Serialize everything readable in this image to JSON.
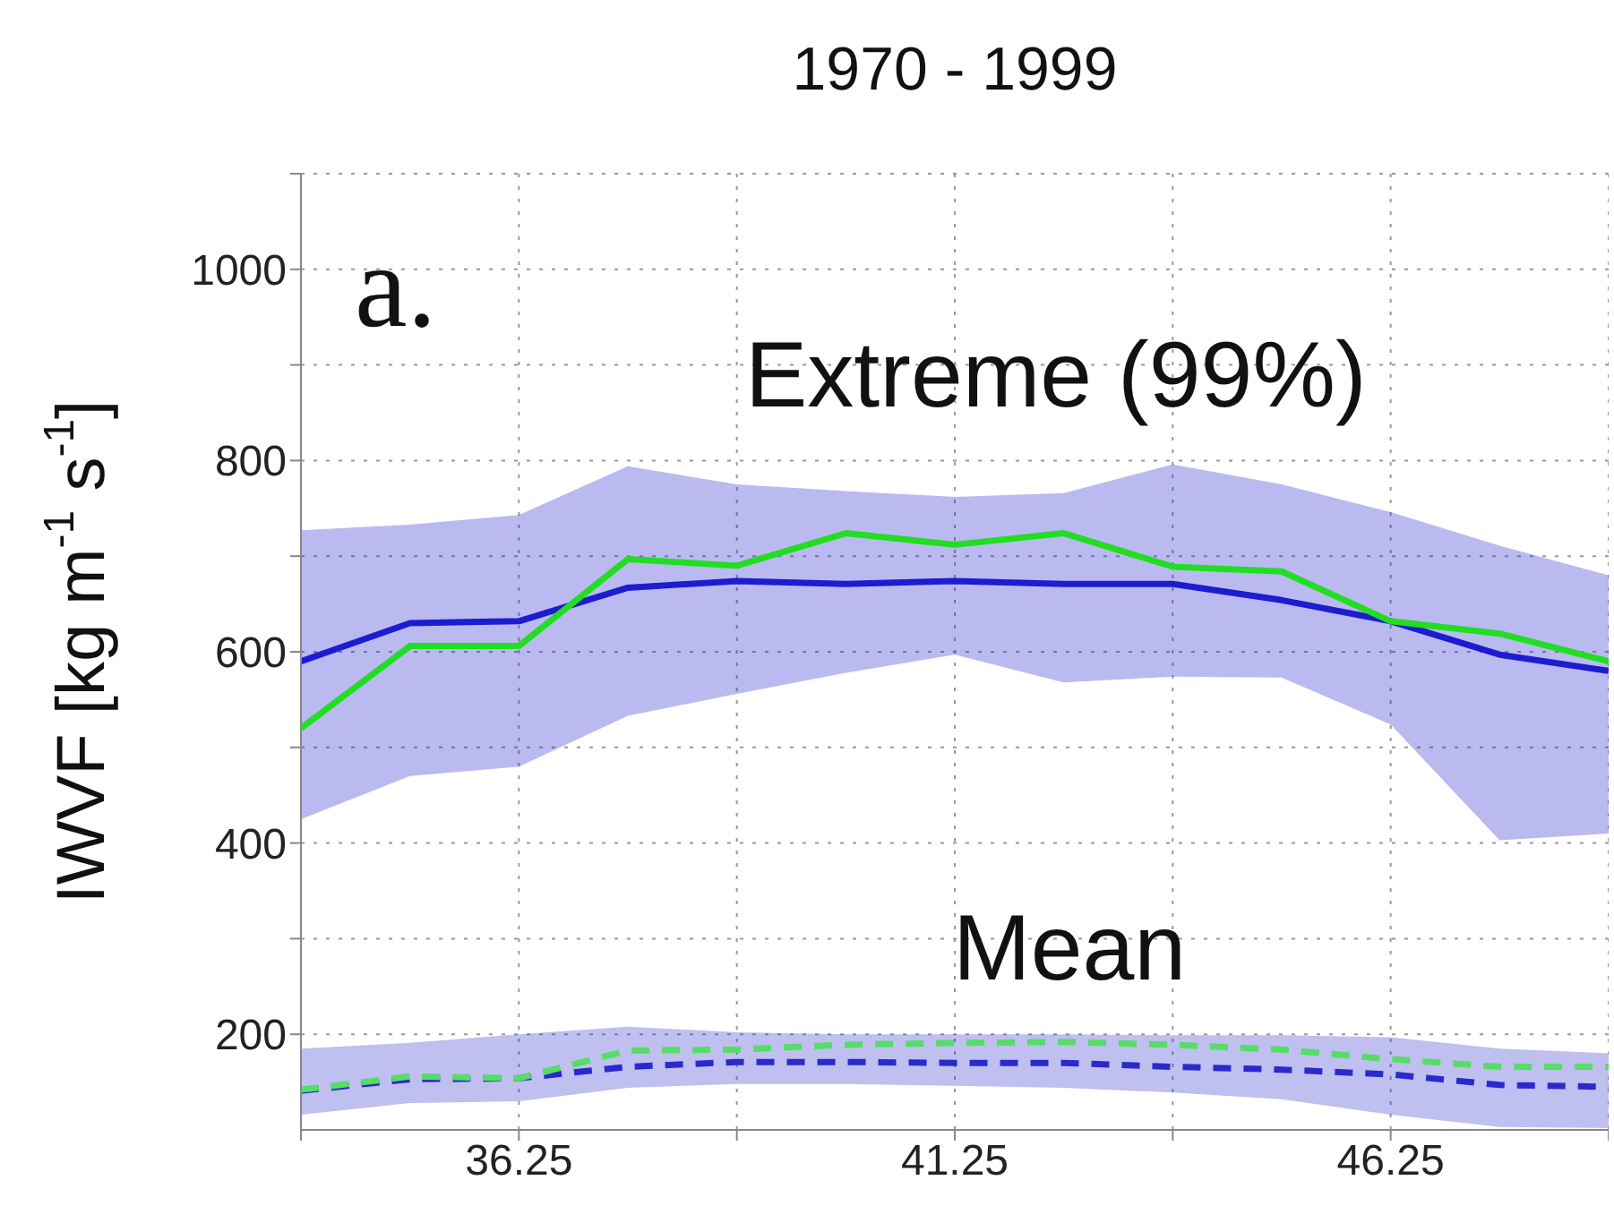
{
  "chart_data": {
    "type": "line",
    "title": "1970 - 1999",
    "ylabel": "IWVF [kg m$^{-1}$ s$^{-1}$]",
    "annotations": [
      "a.",
      "Extreme (99%)",
      "Mean"
    ],
    "x": [
      33.75,
      35,
      36.25,
      37.5,
      38.75,
      40,
      41.25,
      42.5,
      43.75,
      45,
      46.25,
      47.5,
      48.75
    ],
    "series": [
      {
        "color": "#1c1cd0",
        "line_style": "solid",
        "values": [
          590,
          630,
          632,
          667,
          674,
          671,
          674,
          671,
          671,
          654,
          632,
          597,
          580
        ],
        "lower": [
          425,
          470,
          480,
          533,
          556,
          578,
          597,
          568,
          574,
          573,
          524,
          403,
          410
        ],
        "upper": [
          727,
          733,
          743,
          794,
          775,
          768,
          762,
          766,
          796,
          775,
          746,
          711,
          680
        ]
      },
      {
        "color": "#22dd22",
        "line_style": "solid",
        "values": [
          520,
          606,
          606,
          697,
          690,
          724,
          712,
          724,
          689,
          684,
          632,
          619,
          590
        ]
      },
      {
        "color": "#2a2acc",
        "line_style": "dashed",
        "values": [
          141,
          153,
          154,
          166,
          171,
          171,
          170,
          170,
          166,
          163,
          158,
          147,
          145
        ],
        "lower": [
          116,
          128,
          130,
          144,
          148,
          148,
          146,
          144,
          139,
          132,
          116,
          103,
          102
        ],
        "upper": [
          185,
          191,
          200,
          208,
          202,
          200,
          200,
          200,
          199,
          199,
          197,
          185,
          180
        ]
      },
      {
        "color": "#55dd66",
        "line_style": "dashed",
        "values": [
          142,
          156,
          154,
          183,
          184,
          189,
          191,
          192,
          189,
          184,
          174,
          166,
          166
        ]
      }
    ],
    "xlim": [
      33.75,
      48.75
    ],
    "xticks": [
      {
        "value": 33.75,
        "label": null
      },
      36.25,
      {
        "value": 38.75,
        "label": null
      },
      41.25,
      {
        "value": 43.75,
        "label": null
      },
      46.25,
      {
        "value": 48.75,
        "label": null
      }
    ],
    "ylim": [
      100,
      1100
    ],
    "yticks": [
      200,
      {
        "value": 300,
        "label": null
      },
      400,
      {
        "value": 500,
        "label": null
      },
      600,
      {
        "value": 700,
        "label": null
      },
      800,
      {
        "value": 900,
        "label": null
      },
      1000,
      {
        "value": 1100,
        "label": null
      }
    ],
    "grid": true,
    "legend": false,
    "marker": "none"
  }
}
